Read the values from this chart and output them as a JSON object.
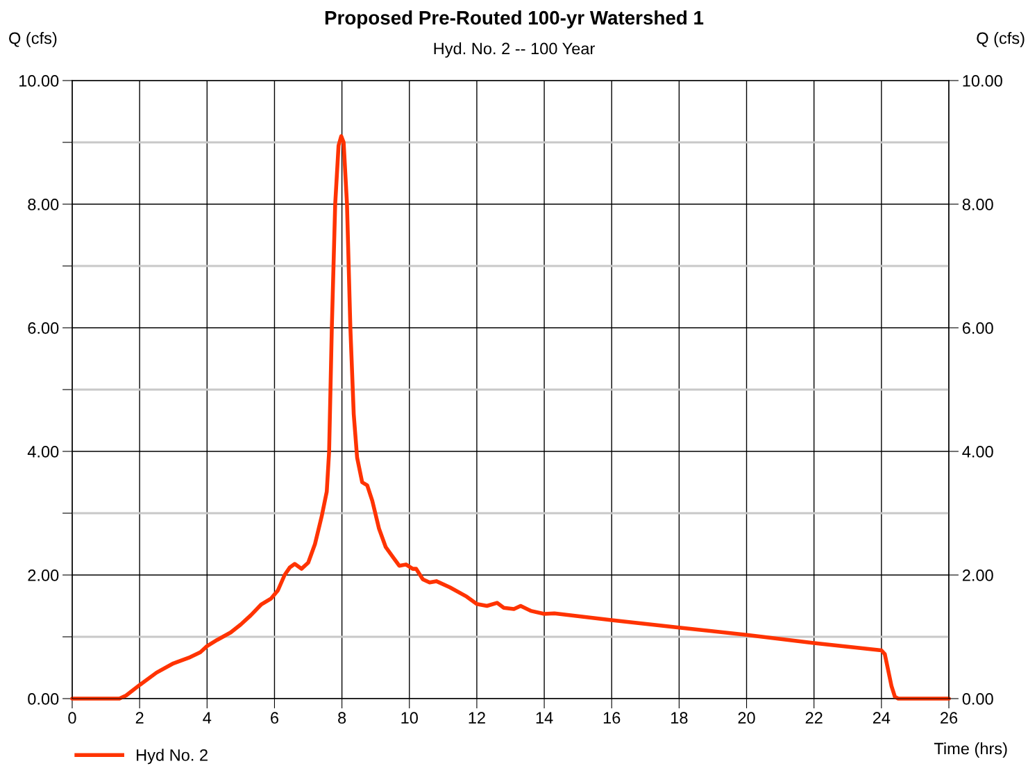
{
  "chart_data": {
    "type": "line",
    "title": "Proposed Pre-Routed 100-yr Watershed 1",
    "subtitle": "Hyd. No. 2 -- 100 Year",
    "ylabel": "Q (cfs)",
    "y2label": "Q (cfs)",
    "xlabel": "Time (hrs)",
    "xlim": [
      0,
      26
    ],
    "xticks": [
      0,
      2,
      4,
      6,
      8,
      10,
      12,
      14,
      16,
      18,
      20,
      22,
      24,
      26
    ],
    "ylim": [
      0,
      10
    ],
    "yticks": [
      {
        "value": 0,
        "label": "0.00"
      },
      {
        "value": 1,
        "label": null
      },
      {
        "value": 2,
        "label": "2.00"
      },
      {
        "value": 3,
        "label": null
      },
      {
        "value": 4,
        "label": "4.00"
      },
      {
        "value": 5,
        "label": null
      },
      {
        "value": 6,
        "label": "6.00"
      },
      {
        "value": 7,
        "label": null
      },
      {
        "value": 8,
        "label": "8.00"
      },
      {
        "value": 9,
        "label": null
      },
      {
        "value": 10,
        "label": "10.00"
      }
    ],
    "y2lim": [
      0,
      10
    ],
    "y2ticks": [
      {
        "value": 0,
        "label": "0.00"
      },
      {
        "value": 2,
        "label": "2.00"
      },
      {
        "value": 4,
        "label": "4.00"
      },
      {
        "value": 6,
        "label": "6.00"
      },
      {
        "value": 8,
        "label": "8.00"
      },
      {
        "value": 10,
        "label": "10.00"
      }
    ],
    "grid": true,
    "legend": "bottom left",
    "marker": "none",
    "line_style": "solid",
    "series": [
      {
        "name": "Hyd No. 2",
        "color": "#ff3300",
        "x": [
          0,
          1.4,
          1.6,
          2,
          2.5,
          3,
          3.5,
          3.8,
          4,
          4.3,
          4.7,
          5.0,
          5.3,
          5.6,
          5.9,
          6.1,
          6.3,
          6.45,
          6.6,
          6.8,
          7.0,
          7.2,
          7.4,
          7.55,
          7.62,
          7.7,
          7.8,
          7.9,
          7.98,
          8.05,
          8.15,
          8.25,
          8.35,
          8.45,
          8.6,
          8.75,
          8.9,
          9.1,
          9.3,
          9.5,
          9.7,
          9.9,
          10.1,
          10.2,
          10.4,
          10.6,
          10.8,
          11.2,
          11.7,
          12.0,
          12.3,
          12.6,
          12.8,
          13.1,
          13.3,
          13.6,
          14.0,
          14.3,
          16,
          18,
          20,
          22,
          24,
          24.1,
          24.3,
          24.4,
          24.5,
          26
        ],
        "values": [
          0,
          0,
          0.05,
          0.22,
          0.42,
          0.57,
          0.67,
          0.75,
          0.85,
          0.95,
          1.07,
          1.2,
          1.35,
          1.52,
          1.62,
          1.75,
          2.0,
          2.12,
          2.18,
          2.1,
          2.2,
          2.5,
          2.95,
          3.35,
          4.0,
          6.0,
          8.0,
          8.95,
          9.1,
          9.0,
          8.0,
          6.0,
          4.6,
          3.9,
          3.5,
          3.45,
          3.2,
          2.75,
          2.45,
          2.3,
          2.15,
          2.17,
          2.1,
          2.1,
          1.93,
          1.88,
          1.9,
          1.8,
          1.65,
          1.53,
          1.5,
          1.55,
          1.47,
          1.45,
          1.5,
          1.42,
          1.37,
          1.38,
          1.27,
          1.15,
          1.03,
          0.9,
          0.78,
          0.72,
          0.2,
          0.03,
          0,
          0
        ]
      }
    ]
  }
}
